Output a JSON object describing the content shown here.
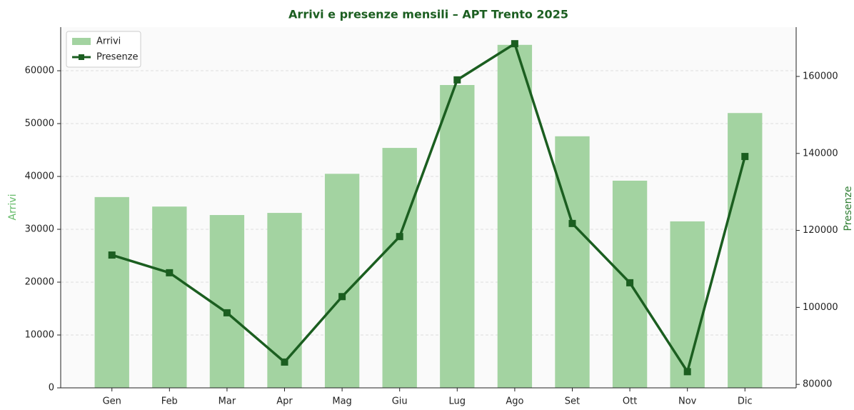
{
  "chart_data": {
    "type": "bar-line",
    "title": "Arrivi e presenze mensili – APT Trento 2025",
    "ylabel": "Arrivi",
    "y2label": "Presenze",
    "categories": [
      "Gen",
      "Feb",
      "Mar",
      "Apr",
      "Mag",
      "Giu",
      "Lug",
      "Ago",
      "Set",
      "Ott",
      "Nov",
      "Dic"
    ],
    "series": [
      {
        "name": "Arrivi",
        "type": "bar",
        "color": "#a3d3a1",
        "axis": "y",
        "values": [
          36100,
          34300,
          32700,
          33100,
          40500,
          45400,
          57300,
          64900,
          47600,
          39200,
          31500,
          52000
        ]
      },
      {
        "name": "Presenze",
        "type": "line",
        "color": "#1b5e20",
        "axis": "y2",
        "values": [
          113600,
          109000,
          98600,
          85800,
          102800,
          118400,
          159100,
          168500,
          121800,
          106400,
          83300,
          139200
        ]
      }
    ],
    "ylim": [
      0,
      68250
    ],
    "yticks": [
      0,
      10000,
      20000,
      30000,
      40000,
      50000,
      60000
    ],
    "y2lim": [
      79100,
      172800
    ],
    "y2ticks": [
      80000,
      100000,
      120000,
      140000,
      160000
    ],
    "grid": true,
    "legend": "upper left"
  }
}
